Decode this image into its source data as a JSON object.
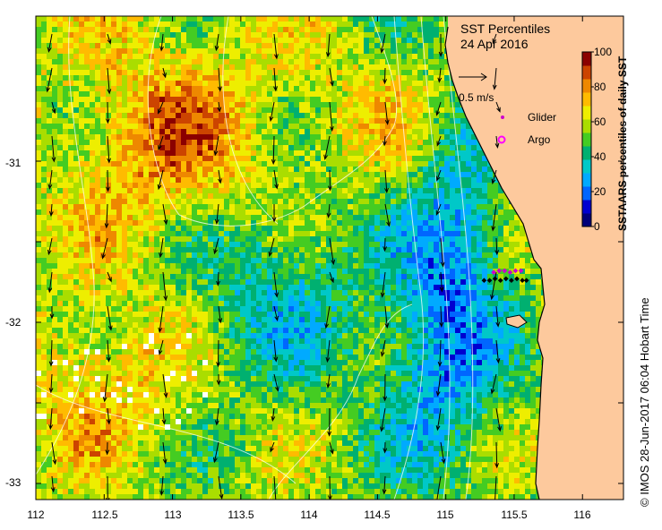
{
  "title": {
    "line1": "SST Percentiles",
    "line2": "24 Apr 2016"
  },
  "velocity_scale": {
    "label": "0.5 m/s"
  },
  "legend": [
    {
      "label": "Glider",
      "color": "#cc00cc",
      "symbol": "dot"
    },
    {
      "label": "Argo",
      "color": "#ff00ff",
      "symbol": "ring"
    }
  ],
  "colorbar": {
    "label": "SSTAARS percentiles of daily SST",
    "ticks": [
      "0",
      "20",
      "40",
      "60",
      "80",
      "100"
    ],
    "colors": [
      "#00007a",
      "#0000d0",
      "#0066ff",
      "#00aaff",
      "#00c8c8",
      "#00b070",
      "#44cc22",
      "#aadd00",
      "#eeee00",
      "#ffbb00",
      "#ee8800",
      "#cc4400",
      "#8b0000"
    ]
  },
  "axes": {
    "x_ticks": [
      "112",
      "112.5",
      "113",
      "113.5",
      "114",
      "114.5",
      "115",
      "115.5",
      "116"
    ],
    "y_ticks": [
      "-31",
      "-32",
      "-33"
    ],
    "xlim": [
      112,
      116.3
    ],
    "ylim": [
      -33.1,
      -30.1
    ]
  },
  "colors": {
    "land": "#fdc99d",
    "no_data": "#ffffff"
  },
  "glider_track": [
    [
      115.28,
      -31.74
    ],
    [
      115.32,
      -31.74
    ],
    [
      115.36,
      -31.73
    ],
    [
      115.4,
      -31.74
    ],
    [
      115.44,
      -31.73
    ],
    [
      115.48,
      -31.74
    ],
    [
      115.52,
      -31.73
    ],
    [
      115.56,
      -31.74
    ],
    [
      115.59,
      -31.74
    ],
    [
      115.35,
      -31.69
    ],
    [
      115.39,
      -31.68
    ],
    [
      115.43,
      -31.68
    ],
    [
      115.47,
      -31.69
    ],
    [
      115.51,
      -31.68
    ],
    [
      115.55,
      -31.68
    ]
  ],
  "credit": "© IMOS 28-Jun-2017 06:04 Hobart Time"
}
